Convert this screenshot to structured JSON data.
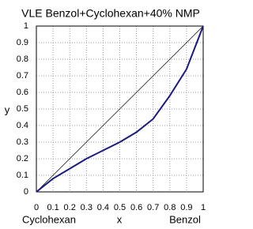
{
  "chart_data": {
    "type": "line",
    "title": "VLE Benzol+Cyclohexan+40% NMP",
    "x_label": "x",
    "y_label": "y",
    "x": [
      0,
      0.05,
      0.1,
      0.2,
      0.3,
      0.4,
      0.5,
      0.6,
      0.7,
      0.8,
      0.9,
      1
    ],
    "values": [
      0,
      0.04,
      0.08,
      0.14,
      0.2,
      0.25,
      0.3,
      0.36,
      0.44,
      0.58,
      0.74,
      1
    ],
    "color": "#1a1a80",
    "xlim": [
      0,
      1
    ],
    "ylim": [
      0,
      1
    ],
    "xticks": [
      0,
      0.1,
      0.2,
      0.3,
      0.4,
      0.5,
      0.6,
      0.7,
      0.8,
      0.9,
      1
    ],
    "yticks": [
      0,
      0.1,
      0.2,
      0.3,
      0.4,
      0.5,
      0.6,
      0.7,
      0.8,
      0.9,
      1
    ],
    "grid": true,
    "diagonal": true,
    "annotations": [
      "Cyclohexan",
      "Benzol"
    ]
  }
}
